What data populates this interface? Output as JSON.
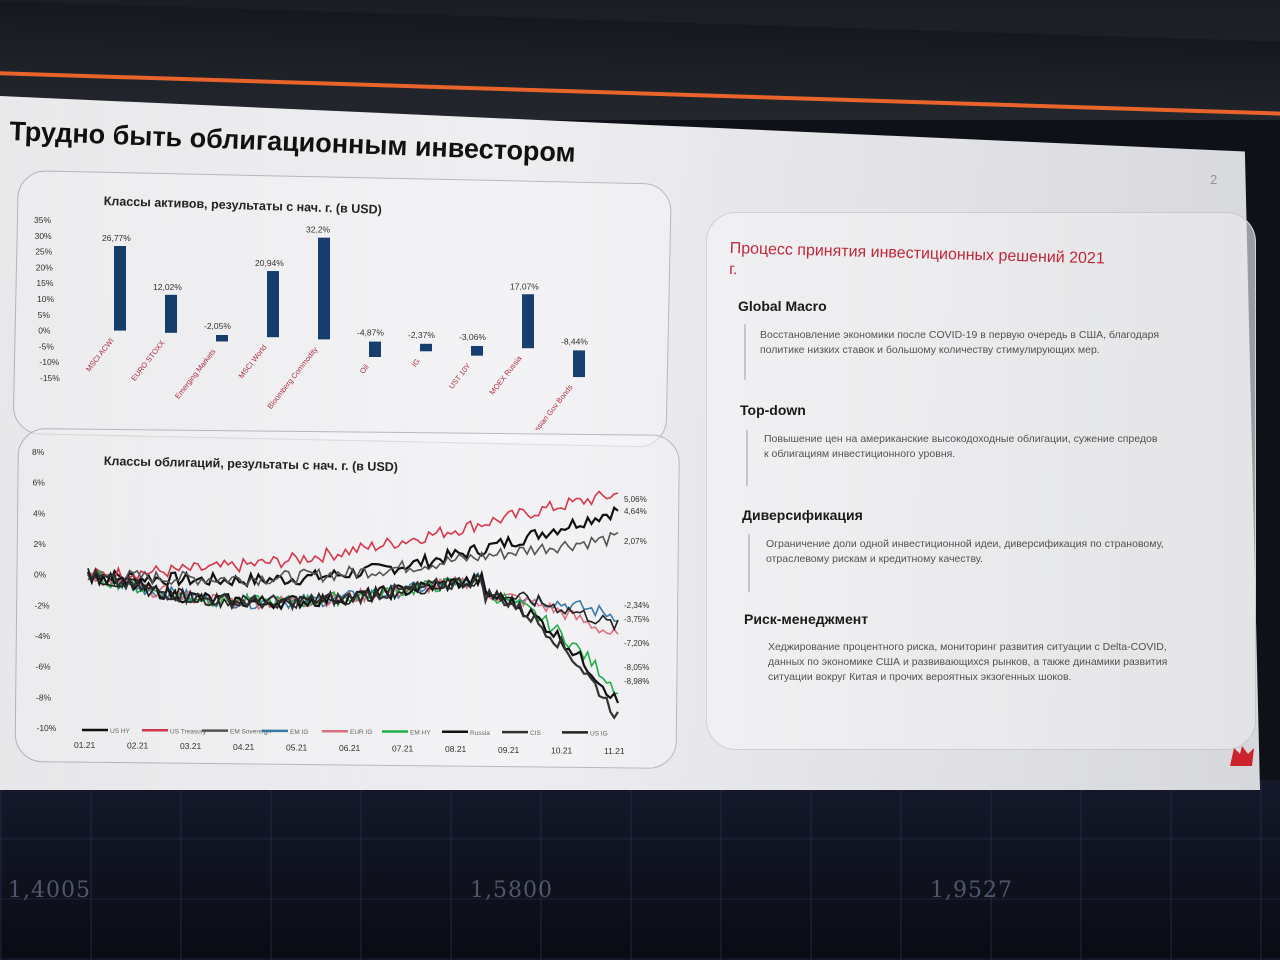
{
  "slide": {
    "title": "Трудно быть облигационным инвестором",
    "page_number": "2"
  },
  "asset_chart": {
    "title": "Классы активов, результаты с нач. г. (в USD)",
    "y_ticks": [
      "35%",
      "30%",
      "25%",
      "20%",
      "15%",
      "10%",
      "5%",
      "0%",
      "-5%",
      "-10%",
      "-15%"
    ],
    "bars": [
      {
        "label": "MSCI ACWI",
        "value": 26.77,
        "display": "26,77%"
      },
      {
        "label": "EURO STOXX",
        "value": 12.02,
        "display": "12,02%"
      },
      {
        "label": "Emerging Markets",
        "value": -2.05,
        "display": "-2,05%"
      },
      {
        "label": "MSCI World",
        "value": 20.94,
        "display": "20,94%"
      },
      {
        "label": "Bloomberg Commodity",
        "value": 32.2,
        "display": "32,2%"
      },
      {
        "label": "Oil",
        "value": -4.87,
        "display": "-4,87%"
      },
      {
        "label": "IG",
        "value": -2.37,
        "display": "-2,37%"
      },
      {
        "label": "UST 10Y",
        "value": -3.06,
        "display": "-3,06%"
      },
      {
        "label": "MOEX Russia",
        "value": 17.07,
        "display": "17,07%"
      },
      {
        "label": "Russian Gov Bonds",
        "value": -8.44,
        "display": "-8,44%"
      }
    ]
  },
  "bond_chart": {
    "title": "Классы облигаций, результаты с нач. г. (в USD)",
    "y_ticks": [
      "8%",
      "6%",
      "4%",
      "2%",
      "0%",
      "-2%",
      "-4%",
      "-6%",
      "-8%",
      "-10%"
    ],
    "x_ticks": [
      "01.21",
      "02.21",
      "03.21",
      "04.21",
      "05.21",
      "06.21",
      "07.21",
      "08.21",
      "09.21",
      "10.21",
      "11.21"
    ],
    "end_labels": [
      "5,06%",
      "4,64%",
      "2,07%",
      "-2,34%",
      "-3,75%",
      "-7,20%",
      "-8,05%",
      "-8,98%"
    ],
    "legend": [
      "US HY",
      "US Treasury",
      "EM Sovereign",
      "EM IG",
      "EUR IG",
      "EM HY",
      "Russia",
      "CIS",
      "US IG"
    ]
  },
  "process": {
    "title": "Процесс принятия инвестиционных решений 2021 г.",
    "sections": [
      {
        "heading": "Global Macro",
        "text": "Восстановление экономики после COVID-19 в первую очередь в США, благодаря политике низких ставок и большому количеству стимулирующих мер."
      },
      {
        "heading": "Top-down",
        "text": "Повышение цен на американские высокодоходные облигации, сужение спредов к облигациям инвестиционного уровня."
      },
      {
        "heading": "Диверсификация",
        "text": "Ограничение доли одной инвестиционной идеи, диверсификация по страновому, отраслевому рискам и кредитному качеству."
      },
      {
        "heading": "Риск-менеджмент",
        "text": "Хеджирование процентного риска, мониторинг развития ситуации с Delta-COVID, данных по экономике США и развивающихся рынков, а также динамики развития ситуации вокруг Китая и прочих вероятных экзогенных шоков."
      }
    ]
  },
  "background": {
    "tickers": [
      "1,4005",
      "1,5800",
      "1,9527"
    ]
  },
  "colors": {
    "accent": "#c42a3b",
    "bar": "#173e6e",
    "orange": "#e8642a"
  }
}
